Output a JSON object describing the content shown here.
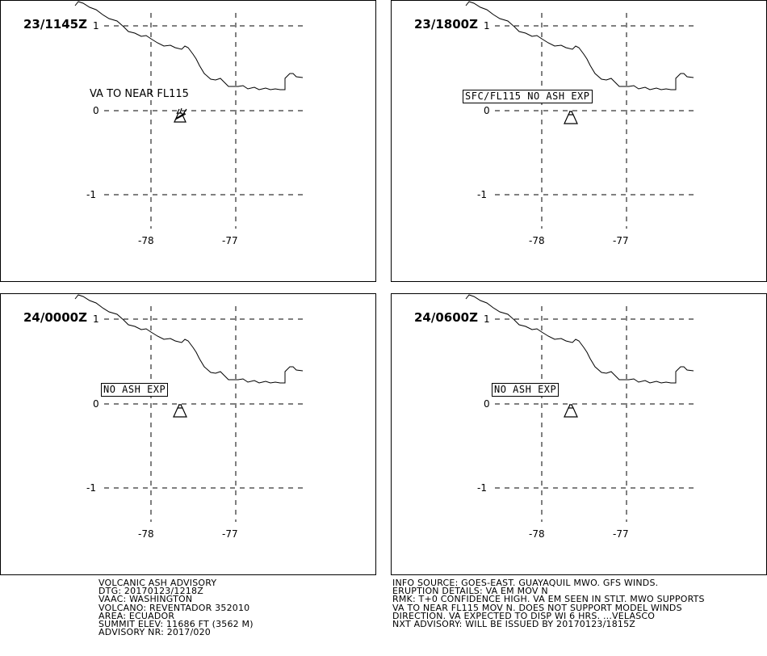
{
  "panels": [
    {
      "time": "23/1145Z",
      "annotation": {
        "text": "VA TO NEAR FL115",
        "style": "plain"
      }
    },
    {
      "time": "23/1800Z",
      "annotation": {
        "text": "SFC/FL115 NO ASH EXP",
        "style": "boxed"
      }
    },
    {
      "time": "24/0000Z",
      "annotation": {
        "text": "NO ASH EXP",
        "style": "boxed"
      }
    },
    {
      "time": "24/0600Z",
      "annotation": {
        "text": "NO ASH EXP",
        "style": "boxed"
      }
    }
  ],
  "grid": {
    "lat_labels": [
      "1",
      "0",
      "-1"
    ],
    "lon_labels": [
      "-78",
      "-77"
    ]
  },
  "volcano_icon": "volcano-icon",
  "advisory_left": [
    "VOLCANIC ASH ADVISORY",
    "DTG: 20170123/1218Z",
    "VAAC: WASHINGTON",
    "VOLCANO: REVENTADOR 352010",
    "AREA: ECUADOR",
    "SUMMIT ELEV: 11686 FT (3562 M)",
    "ADVISORY NR: 2017/020"
  ],
  "advisory_right": [
    "INFO SOURCE: GOES-EAST. GUAYAQUIL MWO. GFS WINDS.",
    "ERUPTION DETAILS: VA EM MOV N",
    "RMK: T+0 CONFIDENCE HIGH. VA EM SEEN IN STLT. MWO SUPPORTS",
    "VA TO NEAR FL115 MOV N. DOES NOT SUPPORT MODEL WINDS",
    "DIRECTION. VA EXPECTED TO DISP WI 6 HRS. ...VELASCO",
    "NXT ADVISORY: WILL BE ISSUED BY 20170123/1815Z"
  ]
}
